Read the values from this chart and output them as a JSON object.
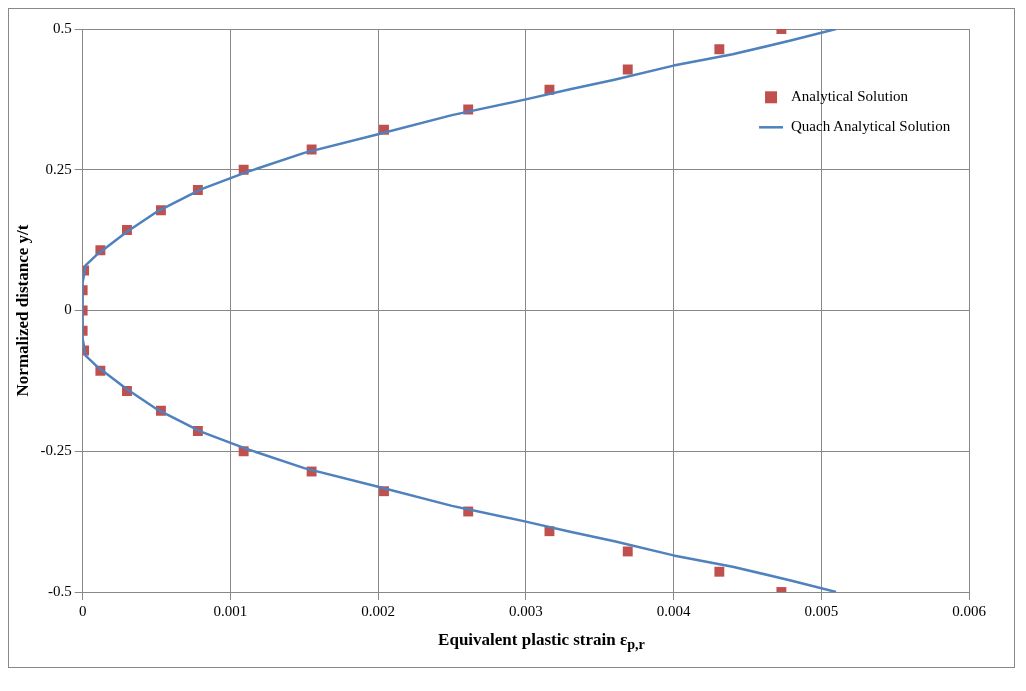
{
  "chart_data": {
    "type": "scatter",
    "xlabel": "Equivalent plastic strain ε$_{p,r}$",
    "ylabel": "Normalized distance y/t",
    "xlim": [
      0,
      0.006
    ],
    "xticks": [
      0,
      0.001,
      0.002,
      0.003,
      0.004,
      0.005,
      0.006
    ],
    "ylim": [
      -0.5,
      0.5
    ],
    "yticks": [
      -0.5,
      -0.25,
      0,
      0.25,
      0.5
    ],
    "grid": true,
    "legend": "top right",
    "series": [
      {
        "name": "Analytical Solution",
        "type": "scatter",
        "marker": "square",
        "color": "#c0504d",
        "x": [
          0.00473,
          0.00431,
          0.00369,
          0.00316,
          0.00261,
          0.00204,
          0.00155,
          0.00109,
          0.00078,
          0.00053,
          0.0003,
          0.00012,
          1e-05,
          0,
          0,
          0,
          1e-05,
          0.00012,
          0.0003,
          0.00053,
          0.00078,
          0.00109,
          0.00155,
          0.00204,
          0.00261,
          0.00316,
          0.00369,
          0.00431,
          0.00473
        ],
        "values": [
          0.5,
          0.464,
          0.428,
          0.392,
          0.357,
          0.321,
          0.286,
          0.25,
          0.214,
          0.178,
          0.143,
          0.107,
          0.071,
          0.036,
          0,
          -0.036,
          -0.071,
          -0.107,
          -0.143,
          -0.178,
          -0.214,
          -0.25,
          -0.286,
          -0.321,
          -0.357,
          -0.392,
          -0.428,
          -0.464,
          -0.5
        ]
      },
      {
        "name": "Quach Analytical Solution",
        "type": "line",
        "marker": "none",
        "line_style": "solid",
        "color": "#4f81bd",
        "x": [
          0.0051,
          0.0048,
          0.0044,
          0.004,
          0.0036,
          0.0033,
          0.003,
          0.0025,
          0.002,
          0.0015,
          0.0011,
          0.0008,
          0.0005,
          0.0003,
          0.0001,
          2e-05,
          0,
          0,
          2e-05,
          0.0001,
          0.0003,
          0.0005,
          0.0008,
          0.0011,
          0.0015,
          0.002,
          0.0025,
          0.003,
          0.0033,
          0.0036,
          0.004,
          0.0044,
          0.0048,
          0.0051
        ],
        "values": [
          0.5,
          0.48,
          0.455,
          0.435,
          0.41,
          0.393,
          0.375,
          0.347,
          0.313,
          0.28,
          0.245,
          0.215,
          0.175,
          0.14,
          0.1,
          0.08,
          0.05,
          -0.05,
          -0.08,
          -0.1,
          -0.14,
          -0.175,
          -0.215,
          -0.245,
          -0.28,
          -0.313,
          -0.347,
          -0.375,
          -0.393,
          -0.41,
          -0.435,
          -0.455,
          -0.48,
          -0.5
        ]
      }
    ]
  }
}
